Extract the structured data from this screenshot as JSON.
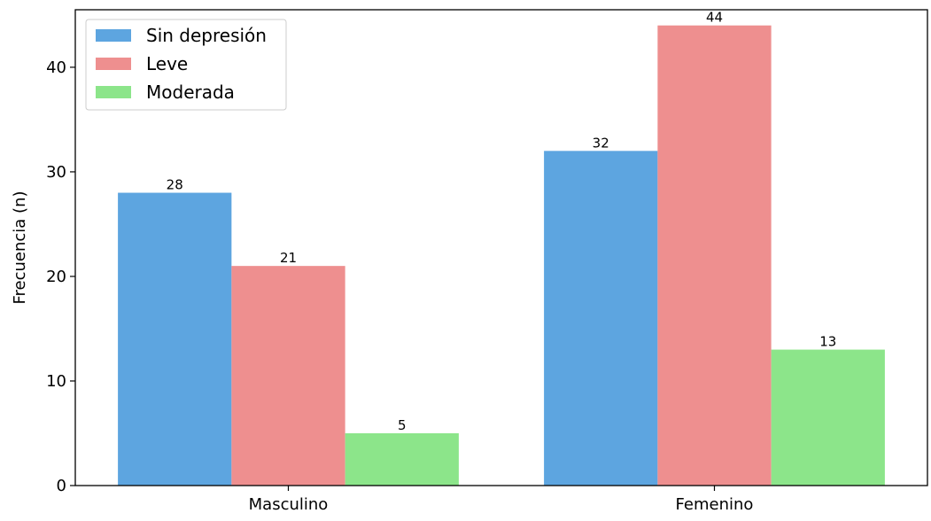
{
  "chart_data": {
    "type": "bar",
    "title": "",
    "xlabel": "",
    "ylabel": "Frecuencia (n)",
    "categories": [
      "Masculino",
      "Femenino"
    ],
    "series": [
      {
        "name": "Sin depresión",
        "values": [
          28,
          32
        ],
        "color": "#5da5e0"
      },
      {
        "name": "Leve",
        "values": [
          21,
          44
        ],
        "color": "#ee8f8f"
      },
      {
        "name": "Moderada",
        "values": [
          5,
          13
        ],
        "color": "#8ce58a"
      }
    ],
    "ylim": [
      0,
      45.5
    ],
    "yticks": [
      0,
      10,
      20,
      30,
      40
    ],
    "legend": "top-left",
    "grid": false,
    "data_labels": true
  }
}
